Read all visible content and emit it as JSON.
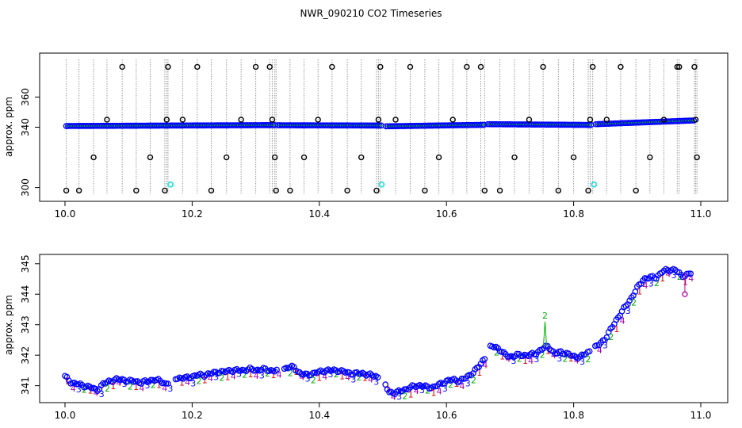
{
  "title": "NWR_090210  CO2 Timeseries",
  "colors": {
    "main": "#0000ff",
    "inner": "#00cc00",
    "outlier": "#000000",
    "flagged": "#40e0e0",
    "spike_line": "#9a9a9a",
    "label1": "#dd0000",
    "label2": "#00aa00",
    "label3": "#0000ff",
    "label4": "#aa00aa"
  },
  "chart_data": [
    {
      "type": "scatter",
      "ylabel": "approx. ppm",
      "xlim": [
        10.0,
        11.0
      ],
      "ylim": [
        294,
        386
      ],
      "xticks": [
        "10.0",
        "10.2",
        "10.4",
        "10.6",
        "10.8",
        "11.0"
      ],
      "yticks": [
        "300",
        "340",
        "360"
      ],
      "ytick_values": [
        300,
        340,
        360
      ],
      "baseline": {
        "segments": [
          {
            "x": [
              10.002,
              10.33
            ],
            "y": [
              340.8,
              341.4
            ]
          },
          {
            "x": [
              10.335,
              10.5
            ],
            "y": [
              341.3,
              341.1
            ]
          },
          {
            "x": [
              10.505,
              10.66
            ],
            "y": [
              340.6,
              341.6
            ]
          },
          {
            "x": [
              10.665,
              10.83
            ],
            "y": [
              342.0,
              341.5
            ]
          },
          {
            "x": [
              10.835,
              10.99
            ],
            "y": [
              342.0,
              344.5
            ]
          }
        ]
      },
      "outliers": {
        "x": [
          10.002,
          10.022,
          10.045,
          10.066,
          10.09,
          10.112,
          10.134,
          10.157,
          10.16,
          10.162,
          10.185,
          10.208,
          10.23,
          10.254,
          10.277,
          10.3,
          10.322,
          10.326,
          10.33,
          10.332,
          10.354,
          10.376,
          10.398,
          10.42,
          10.444,
          10.466,
          10.49,
          10.493,
          10.496,
          10.52,
          10.543,
          10.566,
          10.588,
          10.61,
          10.632,
          10.654,
          10.66,
          10.684,
          10.707,
          10.73,
          10.752,
          10.776,
          10.8,
          10.823,
          10.826,
          10.83,
          10.852,
          10.874,
          10.898,
          10.92,
          10.942,
          10.963,
          10.966,
          10.99,
          10.992,
          10.994
        ],
        "y": [
          298,
          298,
          320,
          345,
          380,
          298,
          320,
          298,
          345,
          380,
          345,
          380,
          298,
          320,
          345,
          380,
          380,
          345,
          320,
          298,
          298,
          320,
          345,
          380,
          298,
          320,
          298,
          345,
          380,
          345,
          380,
          298,
          320,
          345,
          380,
          380,
          298,
          298,
          320,
          345,
          380,
          298,
          320,
          298,
          345,
          380,
          345,
          380,
          298,
          320,
          345,
          380,
          380,
          380,
          345,
          320
        ]
      },
      "flagged": {
        "x": [
          10.166,
          10.498,
          10.832
        ],
        "y": [
          302,
          302,
          302
        ]
      }
    },
    {
      "type": "scatter",
      "ylabel": "approx. ppm",
      "xlim": [
        10.0,
        11.0
      ],
      "ylim": [
        340.6,
        345.15
      ],
      "xticks": [
        "10.0",
        "10.2",
        "10.4",
        "10.6",
        "10.8",
        "11.0"
      ],
      "yticks": [
        "341",
        "342",
        "343",
        "344",
        "345"
      ],
      "ytick_values": [
        341,
        342,
        343,
        344,
        345
      ],
      "series": [
        {
          "x": [
            10.0,
            10.01,
            10.02,
            10.03,
            10.04,
            10.05,
            10.06,
            10.07,
            10.08,
            10.09,
            10.1,
            10.11,
            10.12,
            10.13,
            10.14,
            10.15,
            10.16,
            10.17,
            10.18,
            10.19,
            10.2,
            10.21,
            10.22,
            10.23,
            10.24,
            10.25,
            10.26,
            10.27,
            10.28,
            10.29,
            10.3,
            10.31,
            10.32,
            10.33,
            10.34,
            10.35,
            10.36,
            10.37,
            10.38,
            10.39,
            10.4,
            10.41,
            10.42,
            10.43,
            10.44,
            10.45,
            10.46,
            10.47,
            10.48,
            10.49,
            10.5,
            10.51,
            10.52,
            10.53,
            10.54,
            10.55,
            10.56,
            10.57,
            10.58,
            10.59,
            10.6,
            10.61,
            10.62,
            10.63,
            10.64,
            10.65,
            10.66,
            10.67,
            10.68,
            10.69,
            10.7,
            10.71,
            10.72,
            10.73,
            10.74,
            10.75,
            10.76,
            10.77,
            10.78,
            10.79,
            10.8,
            10.81,
            10.82,
            10.83,
            10.84,
            10.85,
            10.86,
            10.87,
            10.88,
            10.89,
            10.9,
            10.91,
            10.92,
            10.93,
            10.94,
            10.95,
            10.96,
            10.97,
            10.98,
            10.985
          ],
          "y": [
            341.3,
            341.1,
            341.05,
            341.0,
            340.95,
            340.85,
            341.05,
            341.15,
            341.2,
            341.2,
            341.15,
            341.15,
            341.1,
            341.15,
            341.2,
            341.15,
            341.05,
            341.25,
            341.25,
            341.25,
            341.3,
            341.35,
            341.35,
            341.4,
            341.45,
            341.45,
            341.5,
            341.5,
            341.5,
            341.55,
            341.5,
            341.55,
            341.5,
            341.5,
            341.5,
            341.6,
            341.6,
            341.4,
            341.35,
            341.4,
            341.45,
            341.5,
            341.5,
            341.5,
            341.45,
            341.4,
            341.4,
            341.4,
            341.35,
            341.3,
            341.15,
            340.8,
            340.75,
            340.85,
            340.9,
            341.0,
            341.0,
            340.95,
            340.95,
            341.05,
            341.15,
            341.2,
            341.15,
            341.25,
            341.4,
            341.6,
            341.9,
            342.3,
            342.25,
            342.05,
            341.95,
            342.0,
            342.0,
            342.0,
            342.05,
            342.2,
            342.3,
            342.05,
            342.1,
            342.05,
            341.95,
            341.95,
            342.05,
            342.2,
            342.35,
            342.55,
            342.9,
            343.25,
            343.55,
            343.85,
            344.2,
            344.5,
            344.55,
            344.55,
            344.75,
            344.8,
            344.8,
            344.6,
            344.65,
            344.7
          ]
        }
      ],
      "labels_note": "1 2 3 4"
    }
  ]
}
